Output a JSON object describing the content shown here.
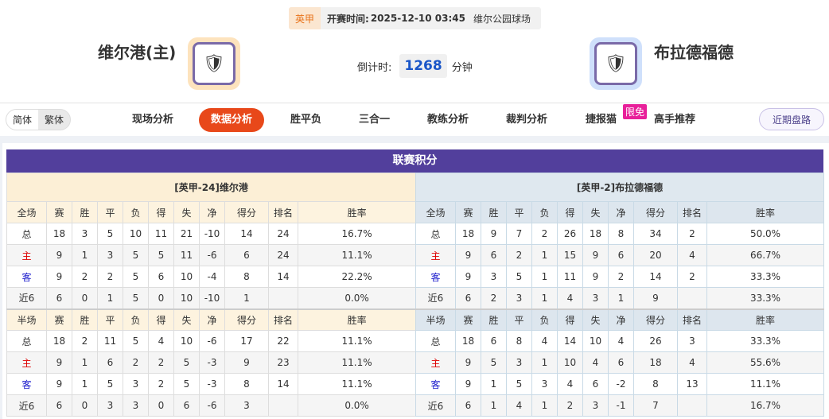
{
  "match": {
    "league": "英甲",
    "kickoff_label": "开赛时间:",
    "kickoff": "2025-12-10 03:45",
    "venue": "维尔公园球场",
    "home": "维尔港(主)",
    "away": "布拉德福德",
    "countdown_label": "倒计时:",
    "countdown": "1268",
    "countdown_unit": "分钟"
  },
  "nav": {
    "lang": [
      "简体",
      "繁体"
    ],
    "items": [
      "现场分析",
      "数据分析",
      "胜平负",
      "三合一",
      "教练分析",
      "裁判分析",
      "捷报猫",
      "高手推荐"
    ],
    "active": 1,
    "badge": "限免",
    "recent": "近期盘路"
  },
  "standings": {
    "title": "联赛积分",
    "columns": [
      "赛",
      "胜",
      "平",
      "负",
      "得",
      "失",
      "净",
      "得分",
      "排名",
      "胜率"
    ],
    "full_label": "全场",
    "half_label": "半场",
    "teams": [
      {
        "title": "[英甲-24]维尔港",
        "full": [
          [
            "总",
            "18",
            "3",
            "5",
            "10",
            "11",
            "21",
            "-10",
            "14",
            "24",
            "16.7%"
          ],
          [
            "主",
            "9",
            "1",
            "3",
            "5",
            "5",
            "11",
            "-6",
            "6",
            "24",
            "11.1%"
          ],
          [
            "客",
            "9",
            "2",
            "2",
            "5",
            "6",
            "10",
            "-4",
            "8",
            "14",
            "22.2%"
          ],
          [
            "近6",
            "6",
            "0",
            "1",
            "5",
            "0",
            "10",
            "-10",
            "1",
            "",
            "0.0%"
          ]
        ],
        "half": [
          [
            "总",
            "18",
            "2",
            "11",
            "5",
            "4",
            "10",
            "-6",
            "17",
            "22",
            "11.1%"
          ],
          [
            "主",
            "9",
            "1",
            "6",
            "2",
            "2",
            "5",
            "-3",
            "9",
            "23",
            "11.1%"
          ],
          [
            "客",
            "9",
            "1",
            "5",
            "3",
            "2",
            "5",
            "-3",
            "8",
            "14",
            "11.1%"
          ],
          [
            "近6",
            "6",
            "0",
            "3",
            "3",
            "0",
            "6",
            "-6",
            "3",
            "",
            "0.0%"
          ]
        ]
      },
      {
        "title": "[英甲-2]布拉德福德",
        "full": [
          [
            "总",
            "18",
            "9",
            "7",
            "2",
            "26",
            "18",
            "8",
            "34",
            "2",
            "50.0%"
          ],
          [
            "主",
            "9",
            "6",
            "2",
            "1",
            "15",
            "9",
            "6",
            "20",
            "4",
            "66.7%"
          ],
          [
            "客",
            "9",
            "3",
            "5",
            "1",
            "11",
            "9",
            "2",
            "14",
            "2",
            "33.3%"
          ],
          [
            "近6",
            "6",
            "2",
            "3",
            "1",
            "4",
            "3",
            "1",
            "9",
            "",
            "33.3%"
          ]
        ],
        "half": [
          [
            "总",
            "18",
            "6",
            "8",
            "4",
            "14",
            "10",
            "4",
            "26",
            "3",
            "33.3%"
          ],
          [
            "主",
            "9",
            "5",
            "3",
            "1",
            "10",
            "4",
            "6",
            "18",
            "4",
            "55.6%"
          ],
          [
            "客",
            "9",
            "1",
            "5",
            "3",
            "4",
            "6",
            "-2",
            "8",
            "13",
            "11.1%"
          ],
          [
            "近6",
            "6",
            "1",
            "4",
            "1",
            "2",
            "3",
            "-1",
            "7",
            "",
            "16.7%"
          ]
        ]
      }
    ]
  }
}
